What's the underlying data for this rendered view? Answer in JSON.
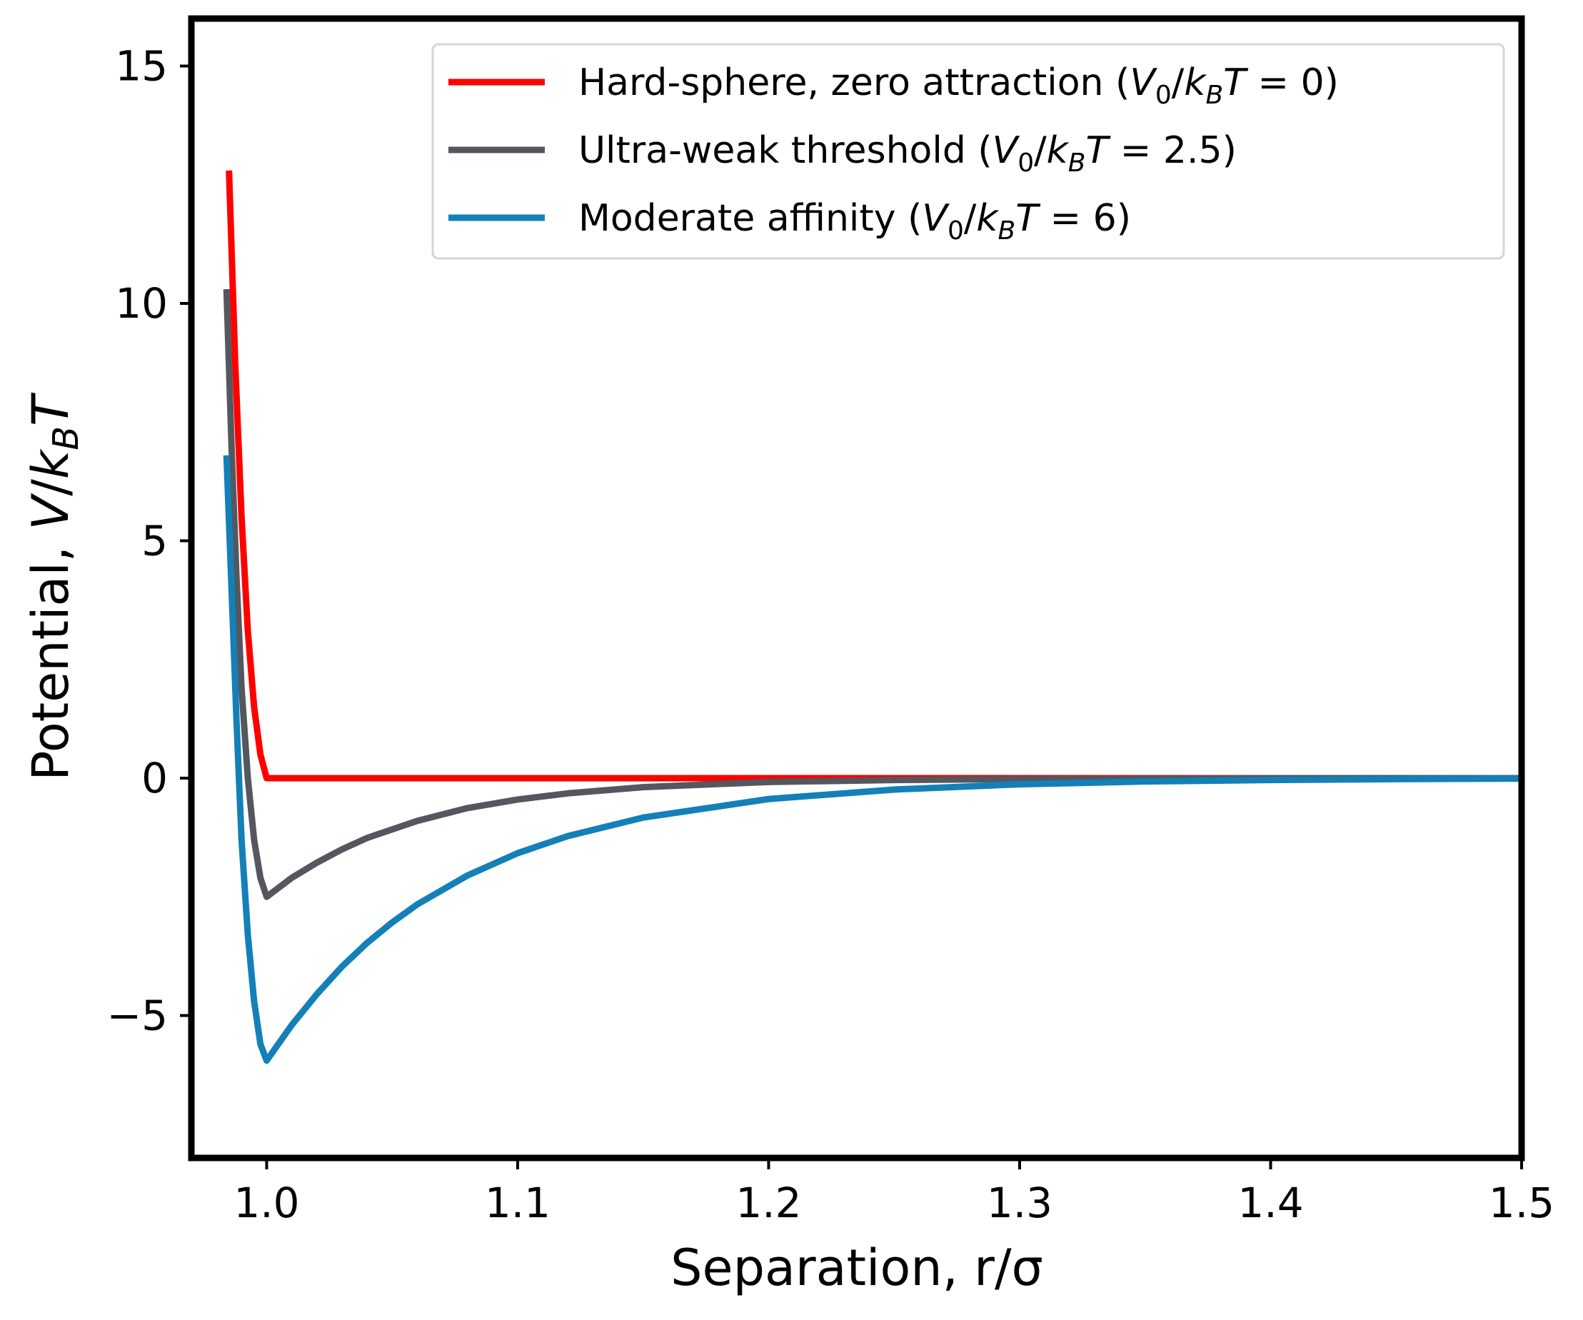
{
  "chart_data": {
    "type": "line",
    "xlabel": "Separation, r/σ",
    "ylabel_parts": {
      "prefix": "Potential, ",
      "v": "V",
      "slash": "/",
      "k": "k",
      "sub": "B",
      "t": "T"
    },
    "xlim": [
      0.97,
      1.5
    ],
    "ylim": [
      -8,
      16
    ],
    "x_ticks": [
      {
        "value": 1.0,
        "label": "1.0"
      },
      {
        "value": 1.1,
        "label": "1.1"
      },
      {
        "value": 1.2,
        "label": "1.2"
      },
      {
        "value": 1.3,
        "label": "1.3"
      },
      {
        "value": 1.4,
        "label": "1.4"
      },
      {
        "value": 1.5,
        "label": "1.5"
      }
    ],
    "y_ticks": [
      {
        "value": -5,
        "label": "−5"
      },
      {
        "value": 0,
        "label": "0"
      },
      {
        "value": 5,
        "label": "5"
      },
      {
        "value": 10,
        "label": "10"
      },
      {
        "value": 15,
        "label": "15"
      }
    ],
    "grid": false,
    "legend_position": "top-right",
    "series": [
      {
        "label_main": "Hard-sphere, zero attraction (",
        "label_value": "0",
        "color": "#ff0000",
        "points": [
          [
            0.985,
            12.8
          ],
          [
            0.9875,
            8.7
          ],
          [
            0.99,
            5.5
          ],
          [
            0.9925,
            3.1
          ],
          [
            0.995,
            1.5
          ],
          [
            0.9975,
            0.5
          ],
          [
            1.0,
            0.0
          ],
          [
            1.25,
            0.0
          ],
          [
            1.5,
            0.0
          ]
        ]
      },
      {
        "label_main": "Ultra-weak threshold (",
        "label_value": "2.5",
        "color": "#54575e",
        "points": [
          [
            0.984,
            10.3
          ],
          [
            0.986,
            7.0
          ],
          [
            0.988,
            4.2
          ],
          [
            0.99,
            1.9
          ],
          [
            0.9925,
            0.0
          ],
          [
            0.995,
            -1.3
          ],
          [
            0.9975,
            -2.1
          ],
          [
            1.0,
            -2.5
          ],
          [
            1.01,
            -2.1
          ],
          [
            1.02,
            -1.78
          ],
          [
            1.03,
            -1.5
          ],
          [
            1.04,
            -1.26
          ],
          [
            1.06,
            -0.9
          ],
          [
            1.08,
            -0.63
          ],
          [
            1.1,
            -0.45
          ],
          [
            1.12,
            -0.32
          ],
          [
            1.15,
            -0.19
          ],
          [
            1.2,
            -0.08
          ],
          [
            1.25,
            -0.04
          ],
          [
            1.3,
            -0.02
          ],
          [
            1.4,
            0.0
          ],
          [
            1.5,
            0.0
          ]
        ]
      },
      {
        "label_main": "Moderate affinity (",
        "label_value": "6",
        "color": "#1380b8",
        "points": [
          [
            0.984,
            6.8
          ],
          [
            0.986,
            4.0
          ],
          [
            0.988,
            1.2
          ],
          [
            0.99,
            -1.3
          ],
          [
            0.9925,
            -3.3
          ],
          [
            0.995,
            -4.7
          ],
          [
            0.9975,
            -5.6
          ],
          [
            1.0,
            -5.95
          ],
          [
            1.01,
            -5.2
          ],
          [
            1.02,
            -4.55
          ],
          [
            1.03,
            -3.97
          ],
          [
            1.04,
            -3.47
          ],
          [
            1.05,
            -3.04
          ],
          [
            1.06,
            -2.66
          ],
          [
            1.08,
            -2.05
          ],
          [
            1.1,
            -1.58
          ],
          [
            1.12,
            -1.22
          ],
          [
            1.15,
            -0.83
          ],
          [
            1.2,
            -0.44
          ],
          [
            1.25,
            -0.24
          ],
          [
            1.3,
            -0.13
          ],
          [
            1.35,
            -0.07
          ],
          [
            1.4,
            -0.04
          ],
          [
            1.45,
            -0.02
          ],
          [
            1.5,
            -0.01
          ]
        ]
      }
    ]
  }
}
